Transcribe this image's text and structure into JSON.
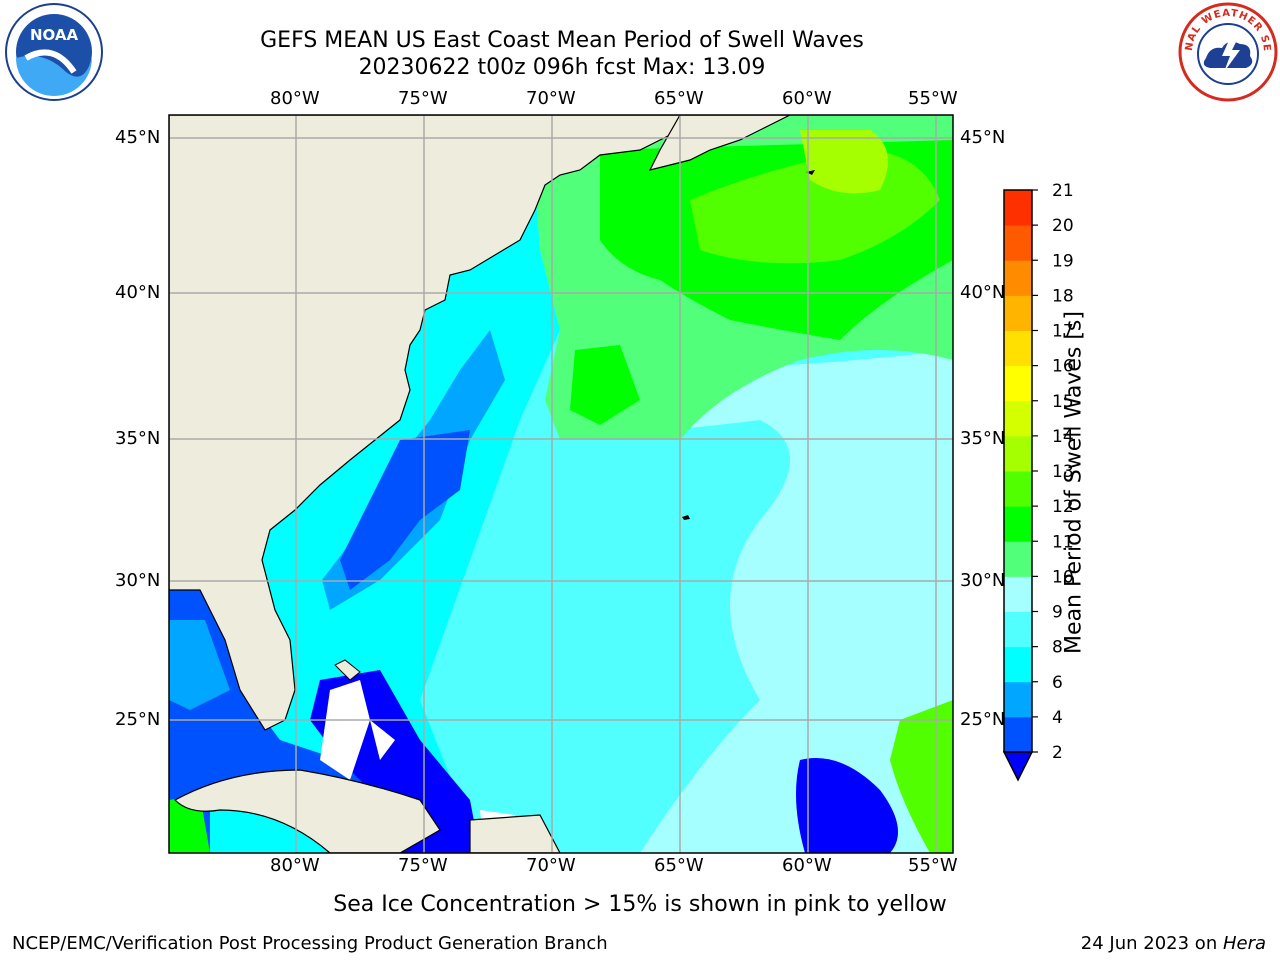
{
  "title": {
    "line1": "GEFS MEAN US East Coast Mean Period of Swell Waves",
    "line2": "20230622 t00z 096h fcst   Max: 13.09"
  },
  "axes": {
    "lon_labels": [
      "80°W",
      "75°W",
      "70°W",
      "65°W",
      "60°W",
      "55°W"
    ],
    "lat_labels": [
      "45°N",
      "40°N",
      "35°N",
      "30°N",
      "25°N"
    ]
  },
  "colorbar": {
    "label": "Mean Period of Swell Waves [s]",
    "ticks": [
      "2",
      "4",
      "6",
      "8",
      "9",
      "10",
      "11",
      "12",
      "13",
      "14",
      "15",
      "16",
      "17",
      "18",
      "19",
      "20",
      "21"
    ],
    "colors": [
      "#0052ff",
      "#00a6ff",
      "#00ffff",
      "#52ffff",
      "#a6ffff",
      "#52ff7a",
      "#00ff00",
      "#52ff00",
      "#a6ff00",
      "#d4ff00",
      "#ffff00",
      "#ffe000",
      "#ffb400",
      "#ff8c00",
      "#ff5a00",
      "#ff3000",
      "#ff0000"
    ],
    "under_color": "#0000ff"
  },
  "map": {
    "land_color": "#eeecdc",
    "coast_color": "#000000",
    "grid_color": "#aaaaaa",
    "missing_color": "#ffffff"
  },
  "logos": {
    "left": "NOAA",
    "right": "NATIONAL WEATHER SERVICE"
  },
  "footer": {
    "note": "Sea Ice Concentration > 15% is shown in pink to yellow",
    "left": "NCEP/EMC/Verification Post Processing Product Generation Branch",
    "right_date": "24 Jun 2023 on ",
    "right_machine": "Hera"
  }
}
